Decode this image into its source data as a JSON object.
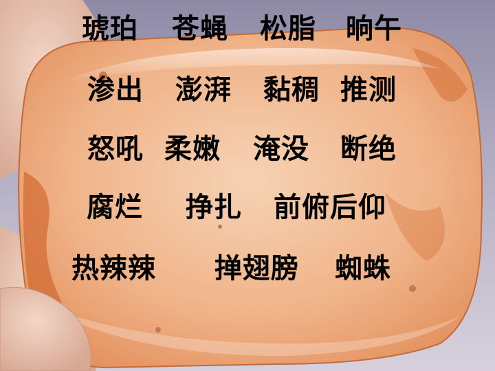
{
  "background_description_color": "#b4aec4",
  "amber_color": "#f0b48a",
  "text_color": "#000000",
  "rows": [
    [
      "琥珀",
      "苍蝇",
      "松脂",
      "晌午"
    ],
    [
      "渗出",
      "澎湃",
      "黏稠",
      "推测"
    ],
    [
      "怒吼",
      "柔嫩",
      "淹没",
      "断绝"
    ],
    [
      "腐烂",
      "挣扎",
      "前俯后仰"
    ],
    [
      "热辣辣",
      "掸翅膀",
      "蜘蛛"
    ]
  ]
}
